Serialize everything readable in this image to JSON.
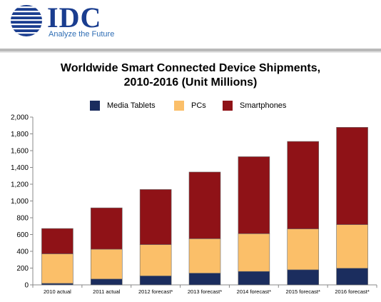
{
  "header": {
    "logo_text": "IDC",
    "tagline": "Analyze the Future"
  },
  "colors": {
    "brand": "#1a3d8f",
    "tablets": "#1b2d5e",
    "pcs": "#fbbf69",
    "smartphones": "#8f1217"
  },
  "chart_data": {
    "type": "bar",
    "stacked": true,
    "title_line1": "Worldwide Smart Connected Device Shipments,",
    "title_line2": "2010-2016 (Unit Millions)",
    "xlabel": "",
    "ylabel": "",
    "ylim": [
      0,
      2000
    ],
    "yticks": [
      "0",
      "200",
      "400",
      "600",
      "800",
      "1,000",
      "1,200",
      "1,400",
      "1,600",
      "1,800",
      "2,000"
    ],
    "ytick_values": [
      0,
      200,
      400,
      600,
      800,
      1000,
      1200,
      1400,
      1600,
      1800,
      2000
    ],
    "categories": [
      "2010 actual",
      "2011 actual",
      "2012 forecast*",
      "2013 forecast*",
      "2014 forecast*",
      "2015 forecast*",
      "2016 forecast*"
    ],
    "series": [
      {
        "name": "Media Tablets",
        "color": "#1b2d5e",
        "values": [
          18,
          70,
          107,
          140,
          160,
          180,
          198
        ]
      },
      {
        "name": "PCs",
        "color": "#fbbf69",
        "values": [
          352,
          355,
          373,
          410,
          450,
          487,
          520
        ]
      },
      {
        "name": "Smartphones",
        "color": "#8f1217",
        "values": [
          302,
          493,
          657,
          795,
          918,
          1043,
          1160
        ]
      }
    ],
    "legend_position": "top",
    "grid": false
  }
}
